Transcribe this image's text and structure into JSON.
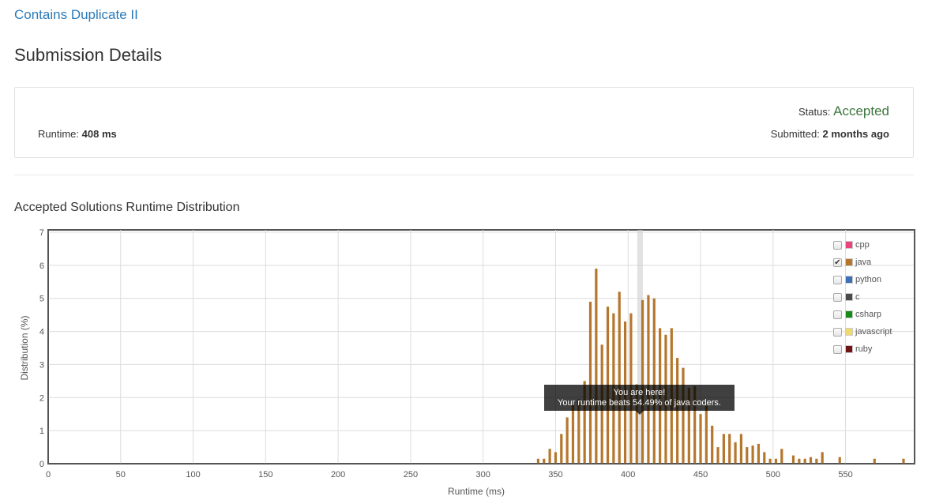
{
  "problem": {
    "title": "Contains Duplicate II"
  },
  "page": {
    "title": "Submission Details"
  },
  "details": {
    "runtime_label": "Runtime:",
    "runtime_value": "408 ms",
    "status_label": "Status:",
    "status_value": "Accepted",
    "submitted_label": "Submitted:",
    "submitted_value": "2 months ago"
  },
  "colors": {
    "status_accepted": "#3c763d",
    "link": "#2a7ab9",
    "java_bar": "#b5772e"
  },
  "legend": [
    {
      "label": "cpp",
      "color": "#e8447e",
      "checked": false
    },
    {
      "label": "java",
      "color": "#b5772e",
      "checked": true
    },
    {
      "label": "python",
      "color": "#3b6fb6",
      "checked": false
    },
    {
      "label": "c",
      "color": "#4a4a4a",
      "checked": false
    },
    {
      "label": "csharp",
      "color": "#178a17",
      "checked": false
    },
    {
      "label": "javascript",
      "color": "#f2d96b",
      "checked": false
    },
    {
      "label": "ruby",
      "color": "#701516",
      "checked": false
    }
  ],
  "tooltip": {
    "line1": "You are here!",
    "line2": "Your runtime beats 54.49% of java coders."
  },
  "chart_data": {
    "type": "bar",
    "title": "Accepted Solutions Runtime Distribution",
    "xlabel": "Runtime (ms)",
    "ylabel": "Distribution (%)",
    "xlim": [
      0,
      590
    ],
    "ylim": [
      0,
      7
    ],
    "xticks": [
      0,
      50,
      100,
      150,
      200,
      250,
      300,
      350,
      400,
      450,
      500,
      550
    ],
    "yticks": [
      0,
      1,
      2,
      3,
      4,
      5,
      6,
      7
    ],
    "grid": true,
    "legend_position": "top-right",
    "highlight_x": 408,
    "series": [
      {
        "name": "java",
        "x": [
          338,
          342,
          346,
          350,
          354,
          358,
          362,
          366,
          370,
          374,
          378,
          382,
          386,
          390,
          394,
          398,
          402,
          406,
          410,
          414,
          418,
          422,
          426,
          430,
          434,
          438,
          442,
          446,
          450,
          454,
          458,
          462,
          466,
          470,
          474,
          478,
          482,
          486,
          490,
          494,
          498,
          502,
          506,
          510,
          514,
          518,
          522,
          526,
          530,
          534,
          538,
          542,
          546,
          550,
          554,
          558,
          562,
          566,
          570,
          574,
          578,
          582,
          586,
          590
        ],
        "values": [
          0.15,
          0.15,
          0.45,
          0.35,
          0.9,
          1.4,
          1.8,
          1.95,
          2.5,
          4.9,
          5.9,
          3.6,
          4.75,
          4.55,
          5.2,
          4.3,
          4.55,
          2.4,
          4.95,
          5.1,
          5.0,
          4.1,
          3.9,
          4.1,
          3.2,
          2.9,
          2.3,
          2.35,
          1.5,
          1.75,
          1.15,
          0.5,
          0.9,
          0.9,
          0.65,
          0.9,
          0.5,
          0.55,
          0.6,
          0.35,
          0.15,
          0.15,
          0.45,
          0.0,
          0.25,
          0.15,
          0.15,
          0.2,
          0.15,
          0.35,
          0.0,
          0.0,
          0.2,
          0.0,
          0.0,
          0.0,
          0.0,
          0.0,
          0.15,
          0.0,
          0.0,
          0.0,
          0.0,
          0.15
        ]
      }
    ]
  }
}
